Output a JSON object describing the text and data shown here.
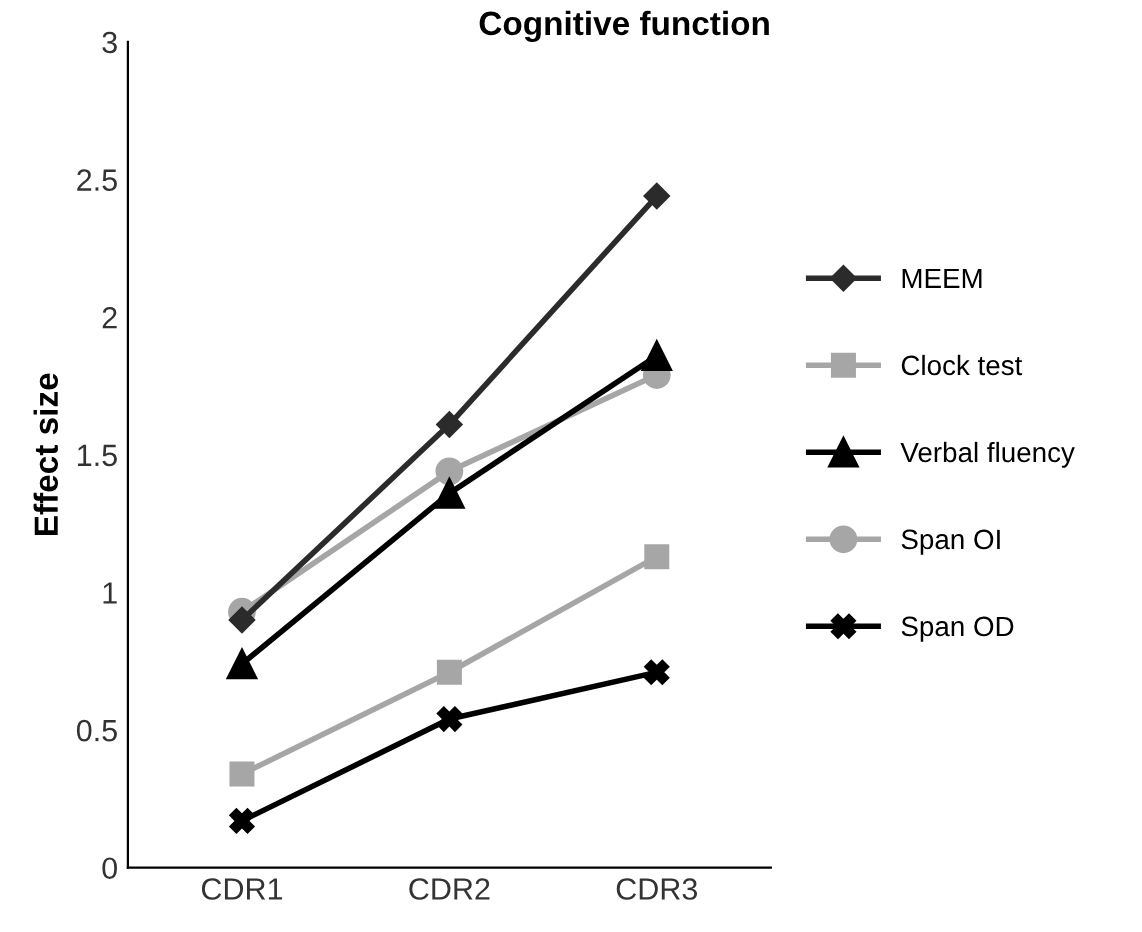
{
  "chart_data": {
    "type": "line",
    "title": "Cognitive function",
    "ylabel": "Effect size",
    "categories": [
      "CDR1",
      "CDR2",
      "CDR3"
    ],
    "series": [
      {
        "name": "MEEM",
        "color": "#2b2b2b",
        "marker": "diamond",
        "values": [
          0.9,
          1.61,
          2.44
        ]
      },
      {
        "name": "Clock test",
        "color": "#a6a6a6",
        "marker": "square",
        "values": [
          0.34,
          0.71,
          1.13
        ]
      },
      {
        "name": "Verbal fluency",
        "color": "#000000",
        "marker": "triangle",
        "values": [
          0.74,
          1.36,
          1.86
        ]
      },
      {
        "name": "Span OI",
        "color": "#a6a6a6",
        "marker": "circle",
        "values": [
          0.93,
          1.44,
          1.79
        ]
      },
      {
        "name": "Span OD",
        "color": "#000000",
        "marker": "cross",
        "values": [
          0.17,
          0.54,
          0.71
        ]
      }
    ],
    "ylim": [
      0,
      3
    ],
    "yticks": [
      0,
      0.5,
      1,
      1.5,
      2,
      2.5,
      3
    ],
    "grid": false,
    "legend": "right",
    "line_style": "solid"
  }
}
